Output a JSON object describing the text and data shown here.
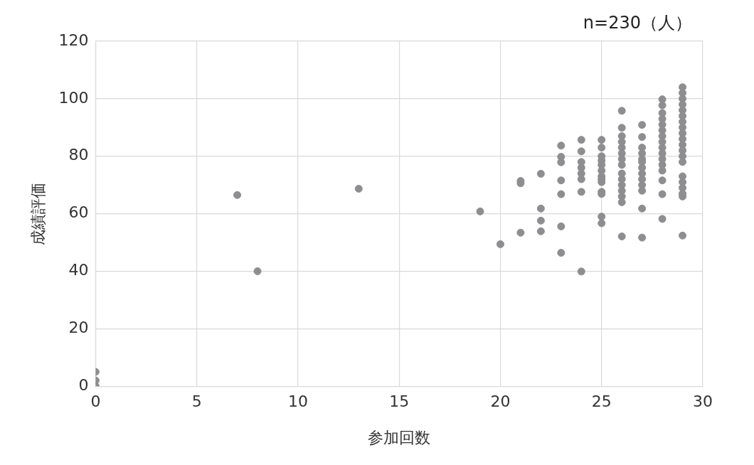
{
  "chart_data": {
    "type": "scatter",
    "xlabel": "参加回数",
    "ylabel": "成績評価",
    "annotations": [
      "n=230（人）"
    ],
    "xlim": [
      0,
      30
    ],
    "xticks": [
      0,
      5,
      10,
      15,
      20,
      25,
      30
    ],
    "ylim": [
      0,
      120
    ],
    "yticks": [
      0,
      20,
      40,
      60,
      80,
      100,
      120
    ],
    "grid": true,
    "legend": false,
    "marker": "circle",
    "series": [
      {
        "color": "#8e8e90",
        "x": [
          0,
          0,
          0,
          7,
          8,
          13,
          19,
          20,
          21,
          21,
          21,
          22,
          22,
          22,
          22,
          23,
          23,
          23,
          23,
          23,
          23,
          23,
          24,
          24,
          24,
          24,
          24,
          24,
          24,
          24,
          25,
          25,
          25,
          25,
          25,
          25,
          25,
          25,
          25,
          25,
          25,
          25,
          25,
          26,
          26,
          26,
          26,
          26,
          26,
          26,
          26,
          26,
          26,
          26,
          26,
          26,
          26,
          26,
          27,
          27,
          27,
          27,
          27,
          27,
          27,
          27,
          27,
          27,
          27,
          27,
          27,
          28,
          28,
          28,
          28,
          28,
          28,
          28,
          28,
          28,
          28,
          28,
          28,
          28,
          28,
          28,
          28,
          29,
          29,
          29,
          29,
          29,
          29,
          29,
          29,
          29,
          29,
          29,
          29,
          29,
          29,
          29,
          29,
          29,
          29,
          29,
          29
        ],
        "values": [
          5,
          2,
          0,
          66.5,
          40,
          68.7,
          60.8,
          49.4,
          71.4,
          70.6,
          53.4,
          73.9,
          61.8,
          57.6,
          53.9,
          83.7,
          79.8,
          77.9,
          71.6,
          66.8,
          55.6,
          46.4,
          85.7,
          81.7,
          78,
          76,
          74,
          72,
          67.6,
          39.9,
          85.7,
          83,
          80,
          78.5,
          77,
          75,
          73,
          72,
          71,
          67.6,
          66.9,
          59,
          56.7,
          95.8,
          89.9,
          87,
          85,
          83,
          81,
          79,
          77,
          74,
          72,
          70,
          68,
          66,
          64,
          52.1,
          90.9,
          86.7,
          83,
          81,
          79,
          78,
          76,
          74,
          72,
          70,
          68,
          61.8,
          51.7,
          99.8,
          97.7,
          95,
          93,
          91,
          89,
          87,
          85,
          83,
          81,
          79,
          77,
          75,
          71.6,
          66.8,
          58.2,
          104,
          102,
          100,
          98,
          96,
          94,
          92,
          90,
          88,
          86,
          84,
          82,
          80,
          78,
          73,
          71,
          69,
          67,
          66,
          52.4
        ]
      }
    ]
  }
}
